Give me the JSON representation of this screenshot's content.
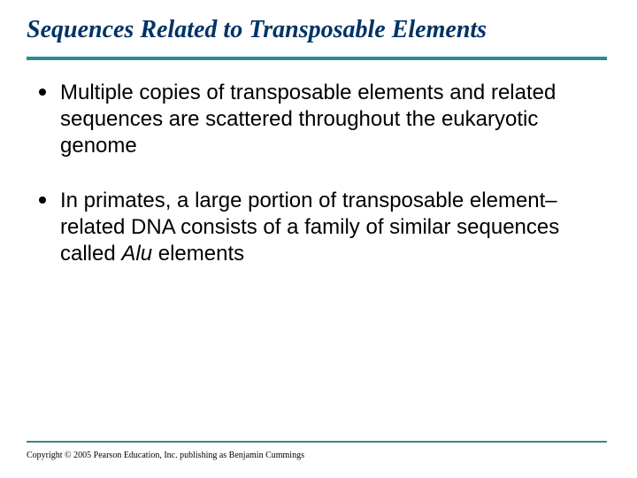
{
  "title": "Sequences Related to Transposable Elements",
  "bullets": [
    {
      "text": "Multiple copies of transposable elements and related sequences are scattered throughout the eukaryotic genome"
    },
    {
      "pre": "In primates, a large portion of transposable element–related DNA consists of a family of similar sequences called ",
      "ital": "Alu",
      "post": " elements"
    }
  ],
  "copyright": "Copyright © 2005 Pearson Education, Inc. publishing as Benjamin Cummings",
  "colors": {
    "title": "#003366",
    "rule": "#2e8b8b",
    "text": "#000000",
    "background": "#ffffff"
  },
  "fonts": {
    "title_family": "Times New Roman",
    "title_size_pt": 21,
    "body_family": "Arial",
    "body_size_pt": 18,
    "copyright_size_pt": 8
  },
  "layout": {
    "slide_width": 720,
    "slide_height": 540
  }
}
